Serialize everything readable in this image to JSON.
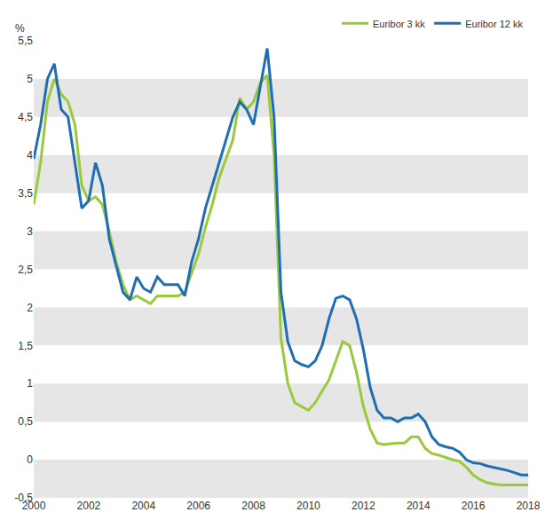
{
  "chart_data": {
    "type": "line",
    "ylabel": "%",
    "x": [
      2000,
      2000.25,
      2000.5,
      2000.75,
      2001,
      2001.25,
      2001.5,
      2001.75,
      2002,
      2002.25,
      2002.5,
      2002.75,
      2003,
      2003.25,
      2003.5,
      2003.75,
      2004,
      2004.25,
      2004.5,
      2004.75,
      2005,
      2005.25,
      2005.5,
      2005.75,
      2006,
      2006.25,
      2006.5,
      2006.75,
      2007,
      2007.25,
      2007.5,
      2007.75,
      2008,
      2008.25,
      2008.5,
      2008.75,
      2009,
      2009.25,
      2009.5,
      2009.75,
      2010,
      2010.25,
      2010.5,
      2010.75,
      2011,
      2011.25,
      2011.5,
      2011.75,
      2012,
      2012.25,
      2012.5,
      2012.75,
      2013,
      2013.25,
      2013.5,
      2013.75,
      2014,
      2014.25,
      2014.5,
      2014.75,
      2015,
      2015.25,
      2015.5,
      2015.75,
      2016,
      2016.25,
      2016.5,
      2016.75,
      2017,
      2017.25,
      2017.5,
      2017.75,
      2018
    ],
    "series": [
      {
        "name": "Euribor 3 kk",
        "color": "#9bc83c",
        "values": [
          3.35,
          3.9,
          4.7,
          5.0,
          4.8,
          4.7,
          4.4,
          3.6,
          3.4,
          3.45,
          3.35,
          3.0,
          2.6,
          2.3,
          2.1,
          2.15,
          2.1,
          2.05,
          2.15,
          2.15,
          2.15,
          2.15,
          2.2,
          2.45,
          2.7,
          3.05,
          3.35,
          3.7,
          3.95,
          4.2,
          4.75,
          4.6,
          4.7,
          4.95,
          5.05,
          4.0,
          1.6,
          1.0,
          0.75,
          0.7,
          0.65,
          0.75,
          0.9,
          1.05,
          1.3,
          1.55,
          1.5,
          1.15,
          0.7,
          0.4,
          0.22,
          0.2,
          0.21,
          0.22,
          0.22,
          0.3,
          0.3,
          0.15,
          0.08,
          0.06,
          0.03,
          0.0,
          -0.02,
          -0.1,
          -0.2,
          -0.26,
          -0.3,
          -0.32,
          -0.33,
          -0.33,
          -0.33,
          -0.33,
          -0.33
        ]
      },
      {
        "name": "Euribor 12 kk",
        "color": "#1e6eb4",
        "values": [
          3.95,
          4.4,
          5.0,
          5.2,
          4.6,
          4.5,
          3.9,
          3.3,
          3.4,
          3.9,
          3.6,
          2.9,
          2.55,
          2.2,
          2.1,
          2.4,
          2.25,
          2.2,
          2.4,
          2.3,
          2.3,
          2.3,
          2.15,
          2.6,
          2.9,
          3.3,
          3.6,
          3.9,
          4.2,
          4.5,
          4.7,
          4.6,
          4.4,
          4.9,
          5.4,
          4.5,
          2.2,
          1.55,
          1.3,
          1.25,
          1.22,
          1.3,
          1.5,
          1.85,
          2.12,
          2.15,
          2.1,
          1.85,
          1.45,
          0.95,
          0.65,
          0.55,
          0.55,
          0.5,
          0.55,
          0.55,
          0.6,
          0.5,
          0.3,
          0.2,
          0.17,
          0.15,
          0.1,
          0.0,
          -0.04,
          -0.05,
          -0.08,
          -0.1,
          -0.12,
          -0.14,
          -0.17,
          -0.2,
          -0.2
        ]
      }
    ],
    "xlim": [
      2000,
      2018
    ],
    "xticks": [
      2000,
      2002,
      2004,
      2006,
      2008,
      2010,
      2012,
      2014,
      2016,
      2018
    ],
    "ylim": [
      -0.5,
      5.5
    ],
    "yticks": [
      {
        "value": -0.5,
        "label": "-0,5"
      },
      0,
      {
        "value": 0.5,
        "label": "0,5"
      },
      1,
      {
        "value": 1.5,
        "label": "1,5"
      },
      2,
      {
        "value": 2.5,
        "label": "2,5"
      },
      3,
      {
        "value": 3.5,
        "label": "3,5"
      },
      4,
      {
        "value": 4.5,
        "label": "4,5"
      },
      5,
      {
        "value": 5.5,
        "label": "5,5"
      }
    ],
    "grid": true,
    "legend": "top right"
  }
}
